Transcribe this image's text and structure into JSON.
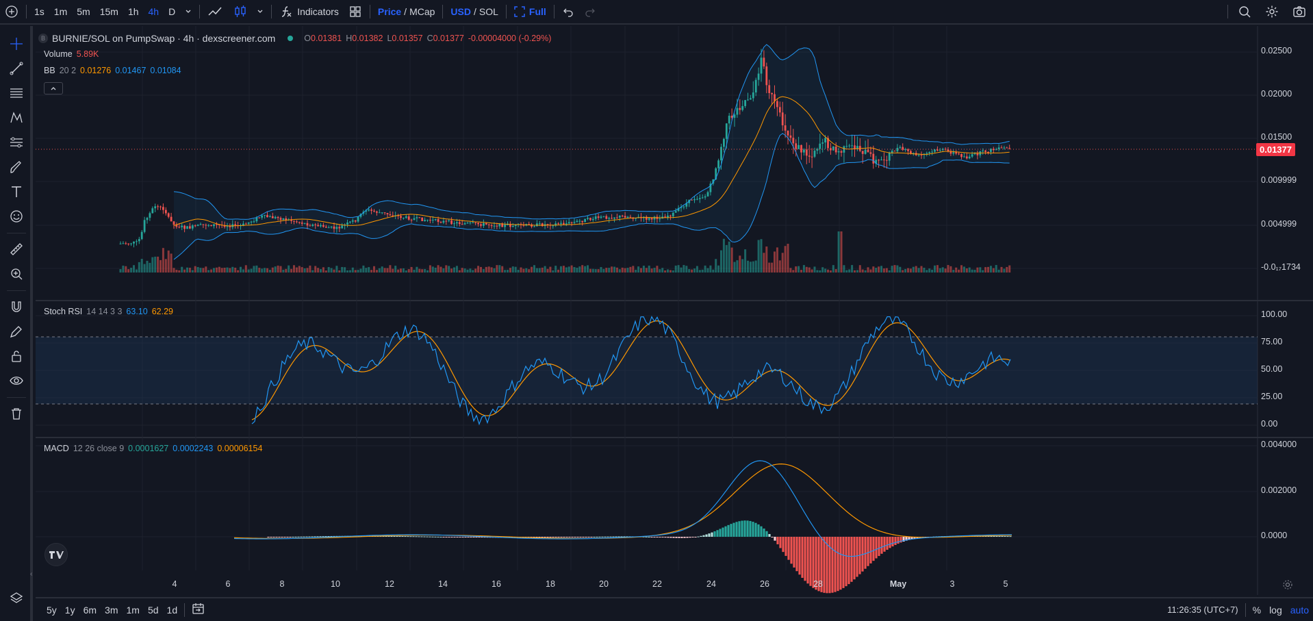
{
  "topbar": {
    "intervals": [
      "1s",
      "1m",
      "5m",
      "15m",
      "1h",
      "4h",
      "D"
    ],
    "active_interval": "4h",
    "indicators_label": "Indicators",
    "price_label": "Price",
    "mcap_label": "MCap",
    "usd_label": "USD",
    "sol_label": "SOL",
    "full_label": "Full",
    "slash": "/"
  },
  "legend": {
    "title": "BURNIE/SOL on PumpSwap · 4h · dexscreener.com",
    "o_label": "O",
    "o_val": "0.01381",
    "h_label": "H",
    "h_val": "0.01382",
    "l_label": "L",
    "l_val": "0.01357",
    "c_label": "C",
    "c_val": "0.01377",
    "change": "-0.00004000 (-0.29%)",
    "volume_label": "Volume",
    "volume_val": "5.89K",
    "bb_label": "BB",
    "bb_params": "20 2",
    "bb_basis": "0.01276",
    "bb_upper": "0.01467",
    "bb_lower": "0.01084",
    "symbol_badge": "B"
  },
  "price_axis": [
    "0.02500",
    "0.02000",
    "0.01500",
    "0.009999",
    "0.004999",
    "-0.0₁₇1734"
  ],
  "current_price": "0.01377",
  "rsi": {
    "label": "Stoch RSI",
    "params": "14 14 3 3",
    "k": "63.10",
    "d": "62.29",
    "axis": [
      "100.00",
      "75.00",
      "50.00",
      "25.00",
      "0.00"
    ]
  },
  "macd": {
    "label": "MACD",
    "params": "12 26 close 9",
    "hist": "0.0001627",
    "macd": "0.0002243",
    "signal": "0.00006154",
    "axis": [
      "0.004000",
      "0.002000",
      "0.0000"
    ]
  },
  "time_axis": [
    "4",
    "6",
    "8",
    "10",
    "12",
    "14",
    "16",
    "18",
    "20",
    "22",
    "24",
    "26",
    "28",
    "May",
    "3",
    "5"
  ],
  "bottombar": {
    "ranges": [
      "5y",
      "1y",
      "6m",
      "3m",
      "1m",
      "5d",
      "1d"
    ],
    "clock": "11:26:35 (UTC+7)",
    "pct": "%",
    "log": "log",
    "auto": "auto"
  },
  "colors": {
    "bg": "#131722",
    "up": "#26a69a",
    "down": "#ef5350",
    "bb_band": "#2196f3",
    "bb_basis": "#ff9800",
    "accent": "#2962ff"
  }
}
